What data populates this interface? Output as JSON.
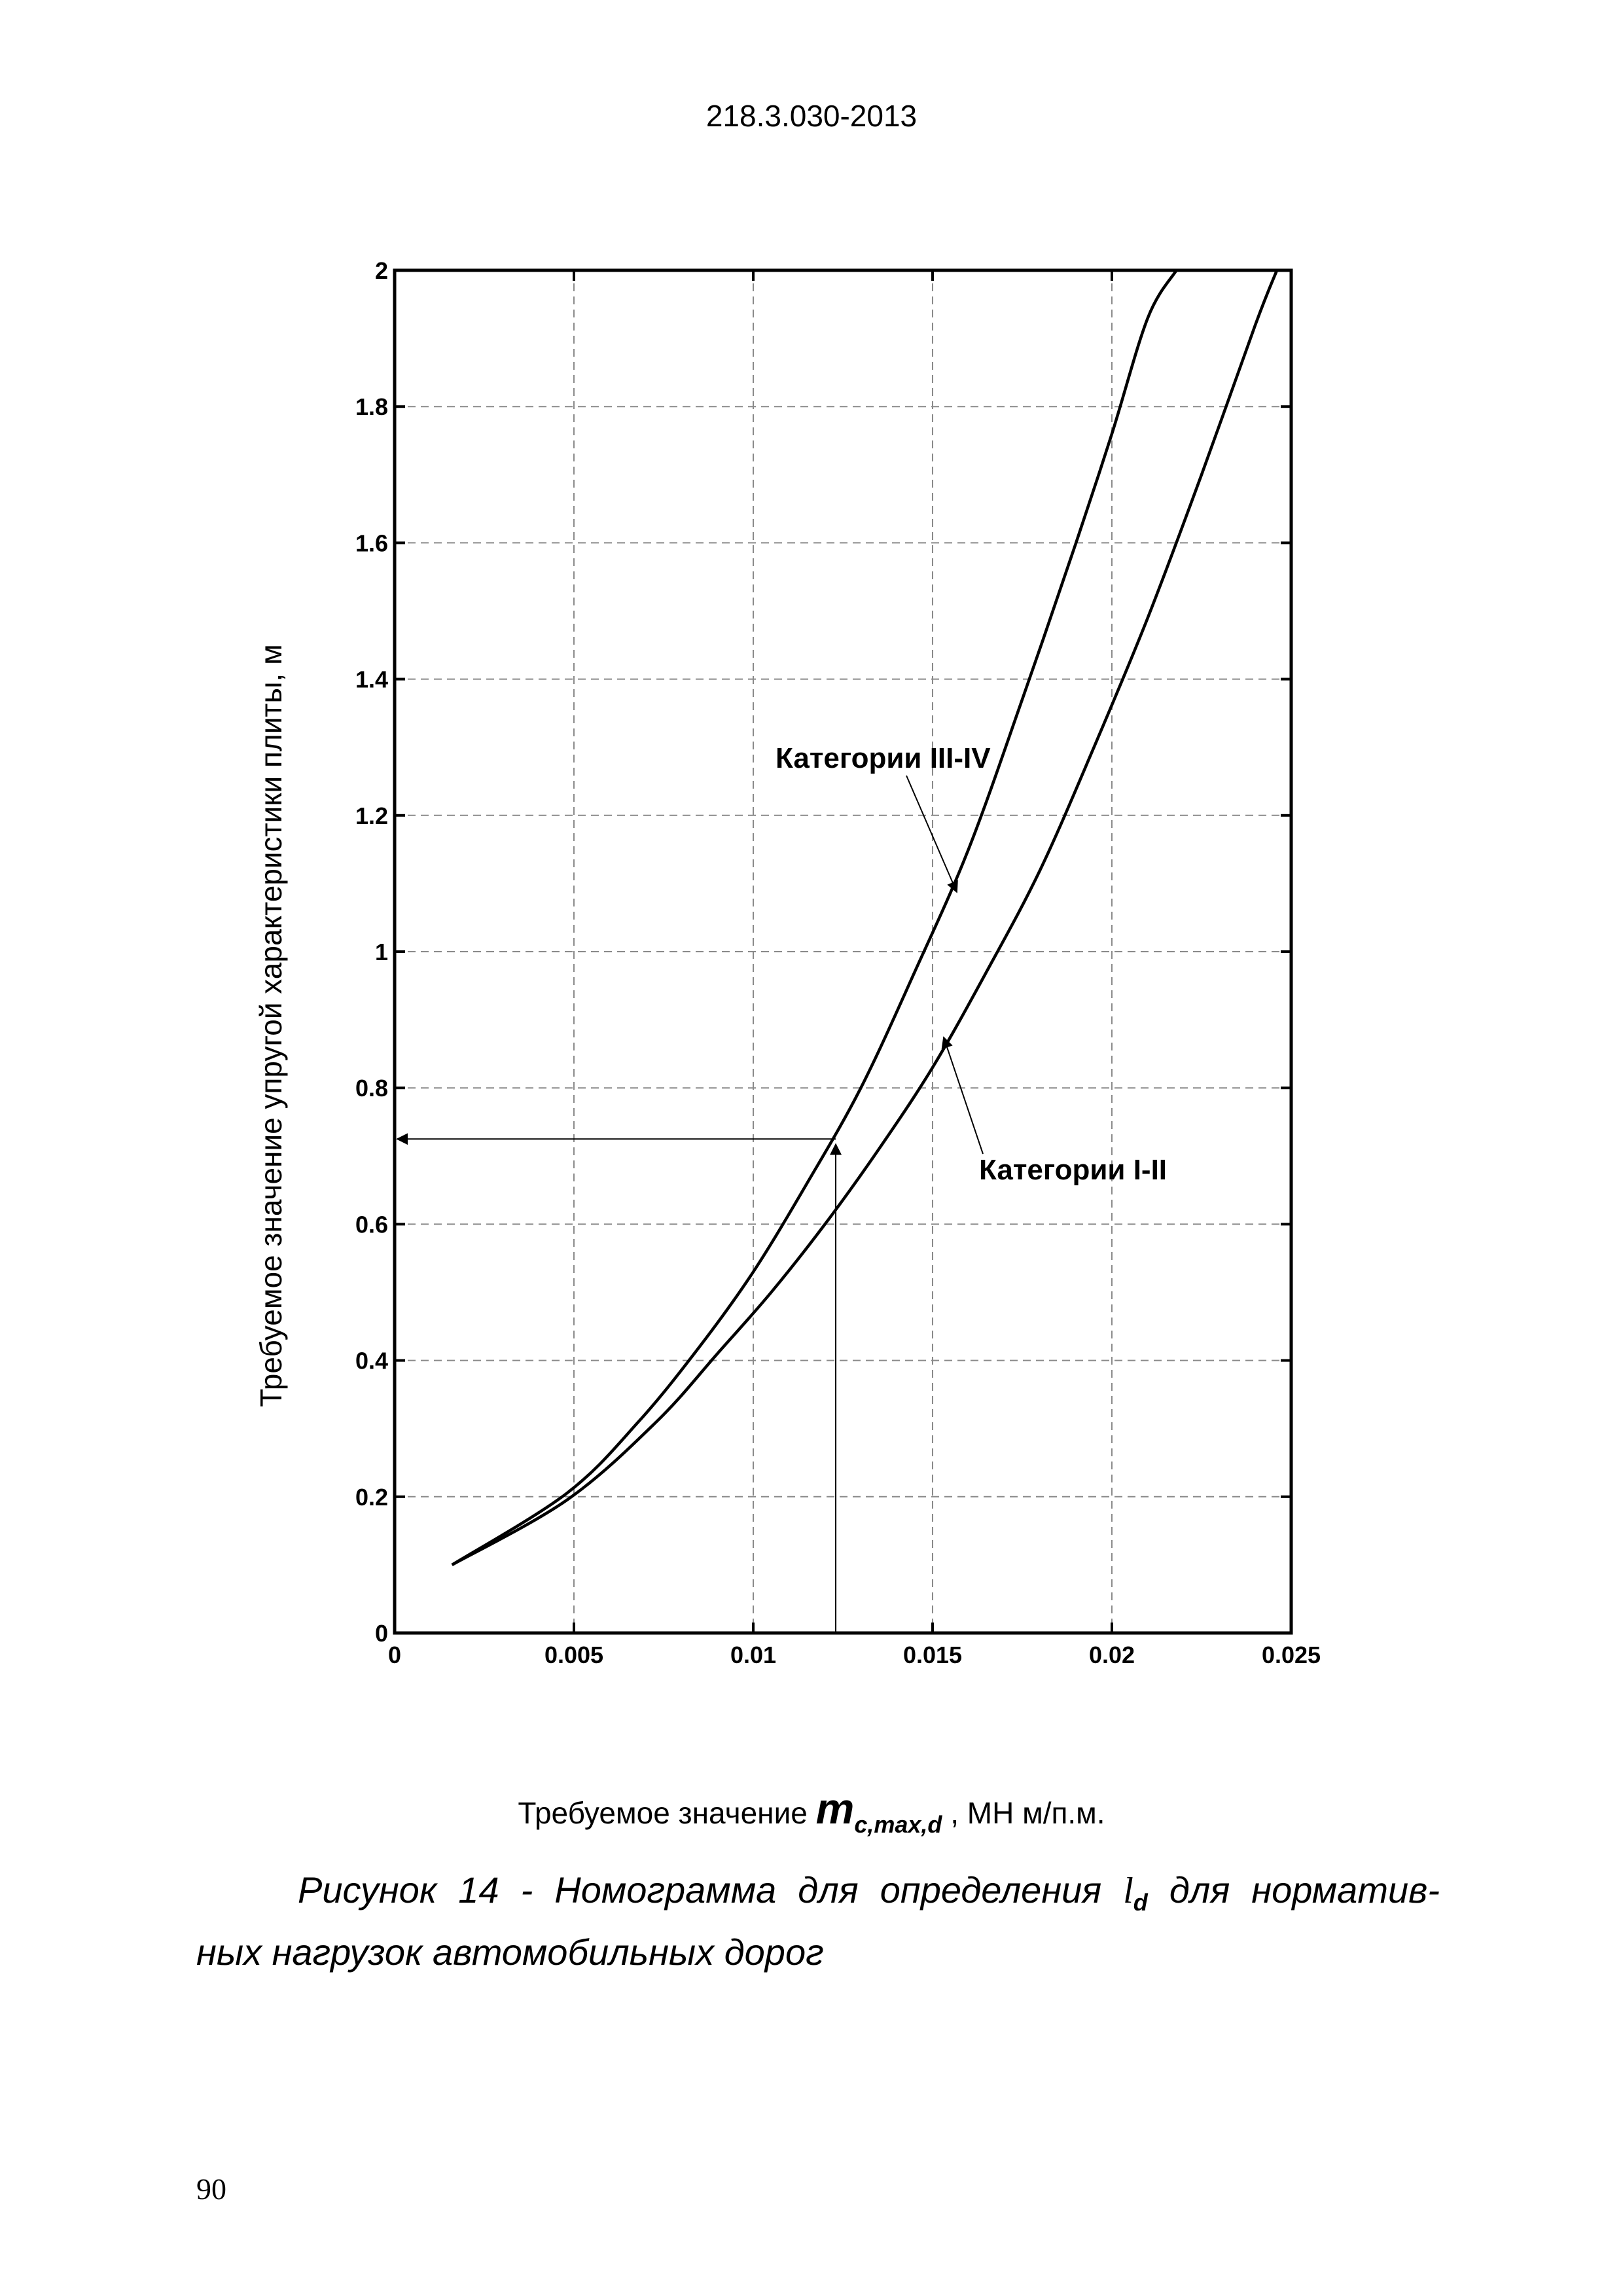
{
  "header": {
    "doc_code": "218.3.030-2013"
  },
  "chart_data": {
    "type": "line",
    "xlim": [
      0,
      0.025
    ],
    "ylim": [
      0,
      2
    ],
    "x_ticks": [
      0,
      0.005,
      0.01,
      0.015,
      0.02,
      0.025
    ],
    "x_tick_labels": [
      "0",
      "0.005",
      "0.01",
      "0.015",
      "0.02",
      "0.025"
    ],
    "y_ticks": [
      0,
      0.2,
      0.4,
      0.6,
      0.8,
      1,
      1.2,
      1.4,
      1.6,
      1.8,
      2
    ],
    "y_tick_labels": [
      "0",
      "0.2",
      "0.4",
      "0.6",
      "0.8",
      "1",
      "1.2",
      "1.4",
      "1.6",
      "1.8",
      "2"
    ],
    "grid": true,
    "ylabel": "Требуемое значение упругой характеристики плиты, м",
    "xlabel_prefix": "Требуемое значение",
    "xlabel_var": "m",
    "xlabel_sub": "c,max,d",
    "xlabel_suffix": ", МН м/п.м.",
    "series": [
      {
        "name": "Категории III-IV",
        "x": [
          0.0016,
          0.0048,
          0.0068,
          0.0085,
          0.01,
          0.0115,
          0.013,
          0.0145,
          0.016,
          0.0175,
          0.019,
          0.02,
          0.021,
          0.0218
        ],
        "y": [
          0.1,
          0.205,
          0.31,
          0.42,
          0.53,
          0.66,
          0.8,
          0.97,
          1.15,
          1.37,
          1.6,
          1.76,
          1.93,
          2.0
        ]
      },
      {
        "name": "Категории I-II",
        "x": [
          0.0016,
          0.0048,
          0.0073,
          0.009,
          0.0105,
          0.012,
          0.0135,
          0.015,
          0.0165,
          0.018,
          0.0195,
          0.021,
          0.0225,
          0.024,
          0.0246
        ],
        "y": [
          0.1,
          0.195,
          0.31,
          0.41,
          0.5,
          0.6,
          0.71,
          0.83,
          0.97,
          1.12,
          1.3,
          1.49,
          1.7,
          1.92,
          2.0
        ]
      }
    ],
    "annotations": [
      {
        "text": "Категории III-IV"
      },
      {
        "text": "Категории I-II"
      }
    ],
    "guide": {
      "x": 0.0123,
      "y": 0.725
    }
  },
  "caption": {
    "text1": "Рисунок 14 - Номограмма для определения",
    "symbol": "l",
    "symbol_sub": "d",
    "text2": "для норматив-",
    "line2": "ных нагрузок автомобильных дорог"
  },
  "page": {
    "number": "90"
  }
}
